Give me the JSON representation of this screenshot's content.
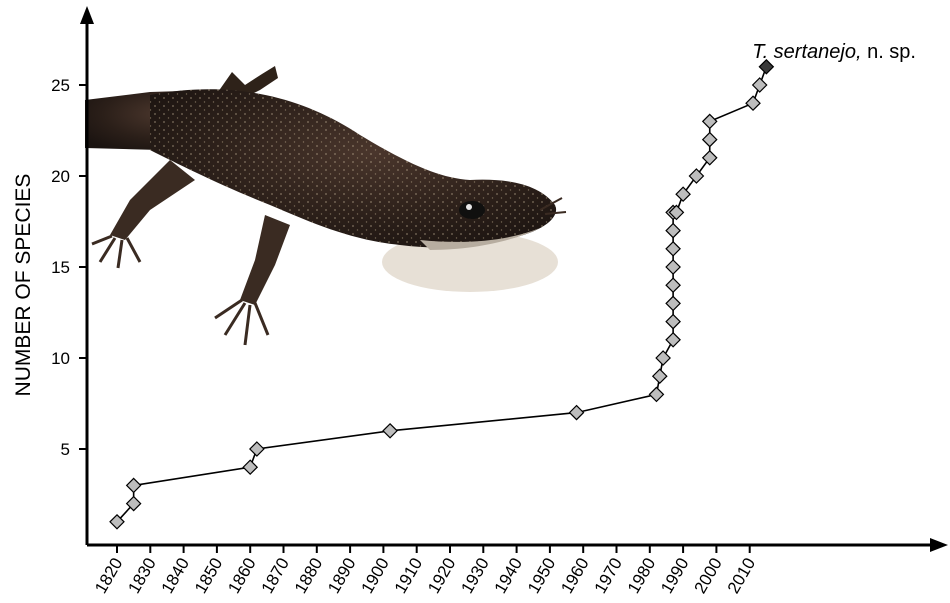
{
  "chart_data": {
    "type": "line",
    "title": "",
    "xlabel": "",
    "ylabel": "NUMBER OF SPECIES",
    "x_ticks": [
      1820,
      1830,
      1840,
      1850,
      1860,
      1870,
      1880,
      1890,
      1900,
      1910,
      1920,
      1930,
      1940,
      1950,
      1960,
      1970,
      1980,
      1990,
      2000,
      2010
    ],
    "y_ticks": [
      5,
      10,
      15,
      20,
      25
    ],
    "xlim": [
      1815,
      2020
    ],
    "ylim": [
      0,
      27
    ],
    "grid": false,
    "marker": "diamond",
    "series": [
      {
        "x": [
          1820,
          1825,
          1825,
          1860,
          1862,
          1902,
          1958,
          1982,
          1983,
          1984,
          1987,
          1987,
          1987,
          1987,
          1987,
          1987,
          1987,
          1987,
          1988,
          1990,
          1994,
          1998,
          1998,
          1998,
          2011,
          2013
        ],
        "y": [
          1,
          2,
          3,
          4,
          5,
          6,
          7,
          8,
          9,
          10,
          11,
          12,
          13,
          14,
          15,
          16,
          17,
          18,
          18,
          19,
          20,
          21,
          22,
          23,
          24,
          25
        ],
        "marker_color": "#bdbdbd"
      }
    ],
    "highlight": {
      "x": 2015,
      "y": 26,
      "marker_color": "#3a3a3a"
    },
    "annotation": {
      "italic": "T. sertanejo,",
      "plain": " n. sp."
    }
  },
  "image": {
    "icon": "lizard-photo"
  }
}
